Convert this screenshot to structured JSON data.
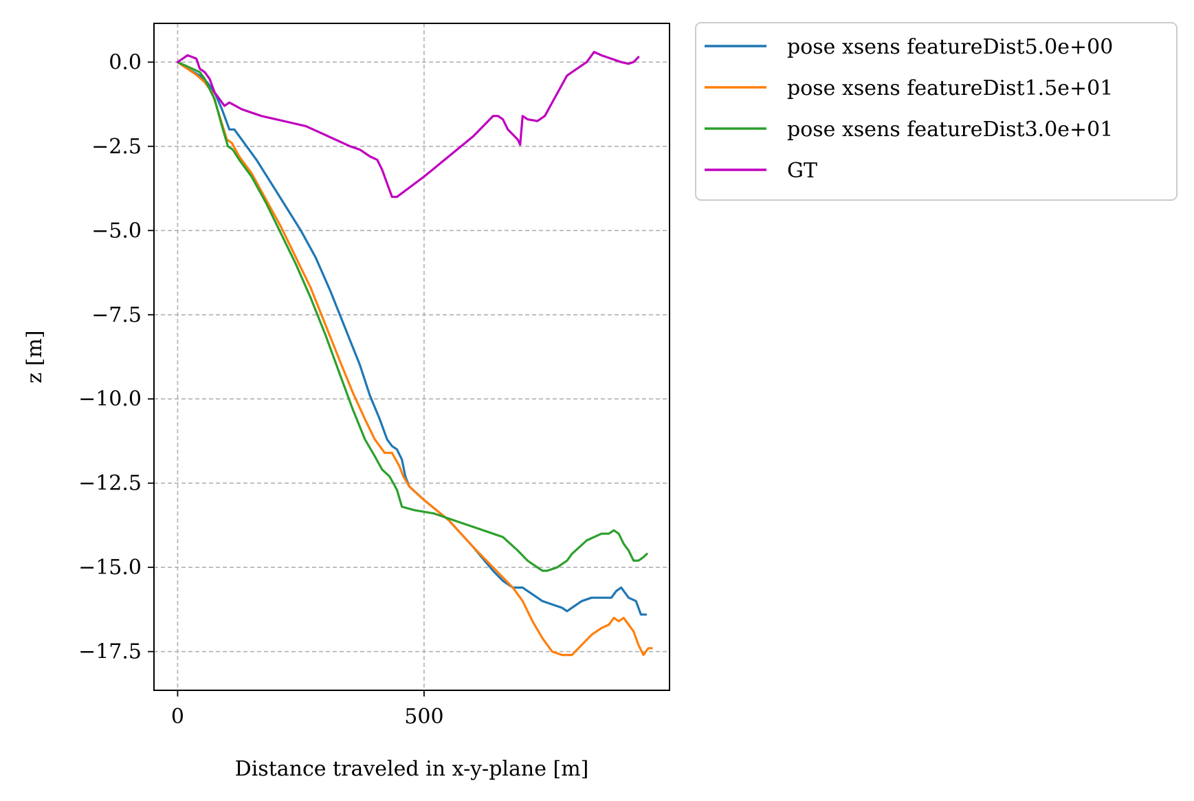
{
  "chart_data": {
    "type": "line",
    "title": "",
    "xlabel": "Distance traveled in x-y-plane [m]",
    "ylabel": "z [m]",
    "xlim": [
      -48,
      998
    ],
    "ylim": [
      -18.65,
      1.15
    ],
    "xticks": [
      0,
      500
    ],
    "xtick_labels": [
      "0",
      "500"
    ],
    "yticks": [
      0.0,
      -2.5,
      -5.0,
      -7.5,
      -10.0,
      -12.5,
      -15.0,
      -17.5
    ],
    "ytick_labels": [
      "0.0",
      "−2.5",
      "−5.0",
      "−7.5",
      "−10.0",
      "−12.5",
      "−15.0",
      "−17.5"
    ],
    "grid": true,
    "legend_position": "outside-top-right",
    "series": [
      {
        "name": "pose xsens featureDist5.0e+00",
        "color": "#1f77b4",
        "points": [
          [
            0,
            0
          ],
          [
            20,
            -0.2
          ],
          [
            45,
            -0.4
          ],
          [
            60,
            -0.6
          ],
          [
            75,
            -0.9
          ],
          [
            90,
            -1.4
          ],
          [
            105,
            -2.0
          ],
          [
            115,
            -2.0
          ],
          [
            140,
            -2.5
          ],
          [
            160,
            -2.9
          ],
          [
            190,
            -3.6
          ],
          [
            220,
            -4.3
          ],
          [
            250,
            -5.0
          ],
          [
            280,
            -5.8
          ],
          [
            310,
            -6.8
          ],
          [
            340,
            -7.9
          ],
          [
            370,
            -9.0
          ],
          [
            390,
            -9.9
          ],
          [
            410,
            -10.6
          ],
          [
            425,
            -11.2
          ],
          [
            435,
            -11.4
          ],
          [
            445,
            -11.5
          ],
          [
            455,
            -11.8
          ],
          [
            462,
            -12.3
          ],
          [
            470,
            -12.6
          ],
          [
            500,
            -13.0
          ],
          [
            550,
            -13.6
          ],
          [
            600,
            -14.4
          ],
          [
            640,
            -15.1
          ],
          [
            660,
            -15.4
          ],
          [
            680,
            -15.6
          ],
          [
            700,
            -15.6
          ],
          [
            720,
            -15.8
          ],
          [
            740,
            -16.0
          ],
          [
            760,
            -16.1
          ],
          [
            780,
            -16.2
          ],
          [
            790,
            -16.3
          ],
          [
            800,
            -16.2
          ],
          [
            820,
            -16.0
          ],
          [
            840,
            -15.9
          ],
          [
            860,
            -15.9
          ],
          [
            880,
            -15.9
          ],
          [
            890,
            -15.7
          ],
          [
            900,
            -15.6
          ],
          [
            915,
            -15.9
          ],
          [
            930,
            -16.0
          ],
          [
            940,
            -16.4
          ],
          [
            950,
            -16.4
          ]
        ]
      },
      {
        "name": "pose xsens featureDist1.5e+01",
        "color": "#ff7f0e",
        "points": [
          [
            0,
            0
          ],
          [
            20,
            -0.2
          ],
          [
            40,
            -0.4
          ],
          [
            55,
            -0.6
          ],
          [
            70,
            -0.9
          ],
          [
            85,
            -1.6
          ],
          [
            100,
            -2.3
          ],
          [
            110,
            -2.4
          ],
          [
            125,
            -2.8
          ],
          [
            150,
            -3.3
          ],
          [
            180,
            -4.1
          ],
          [
            210,
            -4.9
          ],
          [
            240,
            -5.8
          ],
          [
            270,
            -6.7
          ],
          [
            300,
            -7.8
          ],
          [
            330,
            -8.9
          ],
          [
            355,
            -9.8
          ],
          [
            380,
            -10.6
          ],
          [
            400,
            -11.2
          ],
          [
            420,
            -11.6
          ],
          [
            435,
            -11.6
          ],
          [
            450,
            -12.0
          ],
          [
            458,
            -12.3
          ],
          [
            470,
            -12.6
          ],
          [
            500,
            -13.0
          ],
          [
            550,
            -13.6
          ],
          [
            600,
            -14.4
          ],
          [
            640,
            -15.0
          ],
          [
            680,
            -15.6
          ],
          [
            700,
            -16.0
          ],
          [
            720,
            -16.6
          ],
          [
            740,
            -17.1
          ],
          [
            760,
            -17.5
          ],
          [
            780,
            -17.6
          ],
          [
            800,
            -17.6
          ],
          [
            820,
            -17.3
          ],
          [
            840,
            -17.0
          ],
          [
            860,
            -16.8
          ],
          [
            875,
            -16.7
          ],
          [
            885,
            -16.5
          ],
          [
            895,
            -16.6
          ],
          [
            905,
            -16.5
          ],
          [
            915,
            -16.7
          ],
          [
            925,
            -16.9
          ],
          [
            935,
            -17.3
          ],
          [
            945,
            -17.6
          ],
          [
            955,
            -17.4
          ],
          [
            962,
            -17.4
          ]
        ]
      },
      {
        "name": "pose xsens featureDist3.0e+01",
        "color": "#2ca02c",
        "points": [
          [
            0,
            0
          ],
          [
            15,
            -0.1
          ],
          [
            30,
            -0.2
          ],
          [
            45,
            -0.3
          ],
          [
            55,
            -0.5
          ],
          [
            65,
            -0.8
          ],
          [
            75,
            -1.1
          ],
          [
            90,
            -1.9
          ],
          [
            102,
            -2.5
          ],
          [
            112,
            -2.6
          ],
          [
            125,
            -2.9
          ],
          [
            150,
            -3.4
          ],
          [
            180,
            -4.2
          ],
          [
            210,
            -5.1
          ],
          [
            240,
            -6.0
          ],
          [
            270,
            -7.0
          ],
          [
            300,
            -8.1
          ],
          [
            330,
            -9.3
          ],
          [
            355,
            -10.3
          ],
          [
            380,
            -11.2
          ],
          [
            400,
            -11.7
          ],
          [
            415,
            -12.1
          ],
          [
            430,
            -12.3
          ],
          [
            445,
            -12.7
          ],
          [
            455,
            -13.2
          ],
          [
            480,
            -13.3
          ],
          [
            520,
            -13.4
          ],
          [
            560,
            -13.6
          ],
          [
            600,
            -13.8
          ],
          [
            640,
            -14.0
          ],
          [
            660,
            -14.1
          ],
          [
            690,
            -14.5
          ],
          [
            710,
            -14.8
          ],
          [
            730,
            -15.0
          ],
          [
            740,
            -15.1
          ],
          [
            750,
            -15.1
          ],
          [
            770,
            -15.0
          ],
          [
            790,
            -14.8
          ],
          [
            800,
            -14.6
          ],
          [
            815,
            -14.4
          ],
          [
            830,
            -14.2
          ],
          [
            845,
            -14.1
          ],
          [
            860,
            -14.0
          ],
          [
            875,
            -14.0
          ],
          [
            885,
            -13.9
          ],
          [
            895,
            -14.0
          ],
          [
            905,
            -14.3
          ],
          [
            915,
            -14.5
          ],
          [
            925,
            -14.8
          ],
          [
            935,
            -14.8
          ],
          [
            945,
            -14.7
          ],
          [
            952,
            -14.6
          ]
        ]
      },
      {
        "name": "GT",
        "color": "#bf00bf",
        "points": [
          [
            0,
            0
          ],
          [
            10,
            0.1
          ],
          [
            20,
            0.2
          ],
          [
            30,
            0.15
          ],
          [
            38,
            0.1
          ],
          [
            45,
            -0.2
          ],
          [
            55,
            -0.3
          ],
          [
            65,
            -0.5
          ],
          [
            75,
            -0.9
          ],
          [
            85,
            -1.1
          ],
          [
            95,
            -1.3
          ],
          [
            105,
            -1.2
          ],
          [
            130,
            -1.4
          ],
          [
            150,
            -1.5
          ],
          [
            170,
            -1.6
          ],
          [
            200,
            -1.7
          ],
          [
            230,
            -1.8
          ],
          [
            260,
            -1.9
          ],
          [
            290,
            -2.1
          ],
          [
            320,
            -2.3
          ],
          [
            350,
            -2.5
          ],
          [
            370,
            -2.6
          ],
          [
            390,
            -2.8
          ],
          [
            405,
            -2.9
          ],
          [
            415,
            -3.2
          ],
          [
            425,
            -3.6
          ],
          [
            435,
            -4.0
          ],
          [
            445,
            -4.0
          ],
          [
            500,
            -3.4
          ],
          [
            550,
            -2.8
          ],
          [
            600,
            -2.2
          ],
          [
            640,
            -1.6
          ],
          [
            650,
            -1.6
          ],
          [
            660,
            -1.7
          ],
          [
            670,
            -2.0
          ],
          [
            690,
            -2.3
          ],
          [
            695,
            -2.45
          ],
          [
            700,
            -1.6
          ],
          [
            710,
            -1.7
          ],
          [
            730,
            -1.75
          ],
          [
            745,
            -1.6
          ],
          [
            760,
            -1.2
          ],
          [
            775,
            -0.8
          ],
          [
            790,
            -0.4
          ],
          [
            810,
            -0.2
          ],
          [
            830,
            0.0
          ],
          [
            845,
            0.3
          ],
          [
            860,
            0.2
          ],
          [
            880,
            0.1
          ],
          [
            900,
            0.0
          ],
          [
            915,
            -0.05
          ],
          [
            925,
            0.0
          ],
          [
            935,
            0.15
          ]
        ]
      }
    ]
  }
}
